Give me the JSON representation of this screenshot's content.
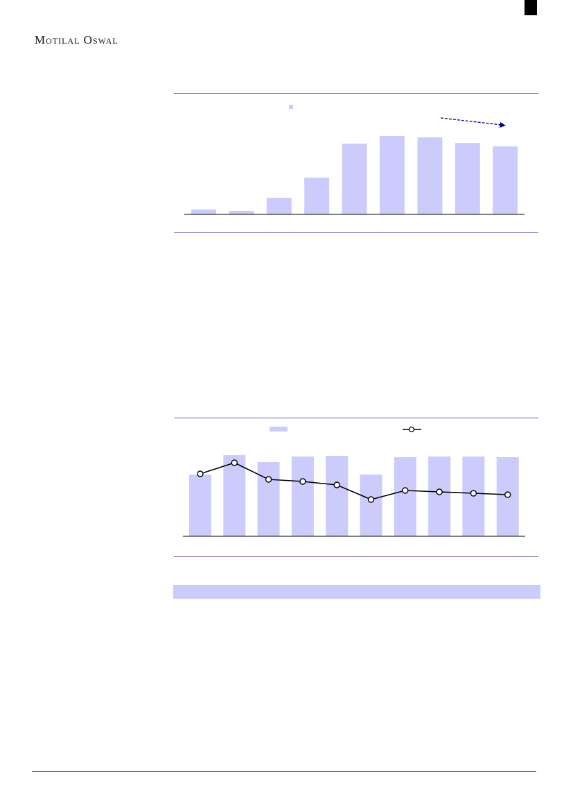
{
  "header": {
    "brand": "Motilal Oswal"
  },
  "colors": {
    "bar": "#ccccfc",
    "rule": "#6a63b5",
    "arrow": "#00008b",
    "line": "#000000"
  },
  "chart_data": [
    {
      "type": "bar",
      "values": [
        7,
        5,
        24,
        53,
        102,
        113,
        111,
        103,
        98
      ],
      "annotation": "dashed-downtrend-arrow",
      "legend": "top-center"
    },
    {
      "type": "bar+line",
      "series": [
        {
          "type": "bar",
          "values": [
            89,
            117,
            107,
            115,
            116,
            89,
            114,
            115,
            115,
            114
          ]
        },
        {
          "type": "line",
          "values": [
            90,
            106,
            82,
            79,
            74,
            53,
            66,
            64,
            62,
            60
          ]
        }
      ],
      "legend": "top-center"
    }
  ]
}
